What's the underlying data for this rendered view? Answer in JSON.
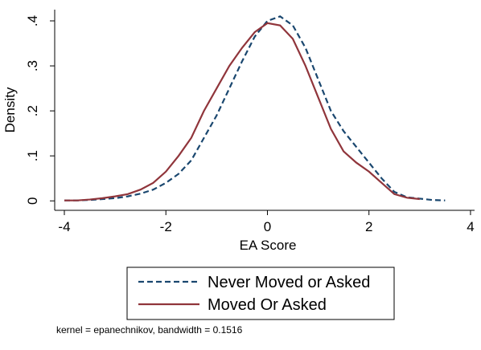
{
  "chart_data": {
    "type": "line",
    "x": [
      -4,
      -3.75,
      -3.5,
      -3.25,
      -3,
      -2.75,
      -2.5,
      -2.25,
      -2,
      -1.75,
      -1.5,
      -1.25,
      -1,
      -0.75,
      -0.5,
      -0.25,
      0,
      0.25,
      0.5,
      0.75,
      1,
      1.25,
      1.5,
      1.75,
      2,
      2.25,
      2.5,
      2.75,
      3,
      3.25,
      3.5
    ],
    "series": [
      {
        "name": "Never Moved or Asked",
        "color": "#1a476f",
        "style": "dash",
        "values": [
          0.001,
          0.001,
          0.002,
          0.004,
          0.006,
          0.01,
          0.016,
          0.025,
          0.04,
          0.06,
          0.09,
          0.14,
          0.19,
          0.25,
          0.31,
          0.365,
          0.4,
          0.41,
          0.39,
          0.34,
          0.27,
          0.2,
          0.155,
          0.12,
          0.085,
          0.05,
          0.02,
          0.008,
          0.005,
          0.002,
          0.001
        ]
      },
      {
        "name": "Moved Or Asked",
        "color": "#90353b",
        "style": "solid",
        "values": [
          0.001,
          0.001,
          0.003,
          0.006,
          0.01,
          0.015,
          0.025,
          0.04,
          0.065,
          0.1,
          0.14,
          0.2,
          0.25,
          0.3,
          0.34,
          0.375,
          0.395,
          0.39,
          0.36,
          0.3,
          0.23,
          0.16,
          0.11,
          0.085,
          0.065,
          0.04,
          0.015,
          0.007,
          0.004,
          null,
          null
        ]
      }
    ],
    "xlabel": "EA Score",
    "ylabel": "Density",
    "xlim": [
      -4.19,
      4.08
    ],
    "xticks": [
      -4,
      -2,
      0,
      2,
      4
    ],
    "ylim": [
      -0.021,
      0.425
    ],
    "yticks": [
      0,
      {
        "value": 0.1,
        "label": ".1"
      },
      {
        "value": 0.2,
        "label": ".2"
      },
      {
        "value": 0.3,
        "label": ".3"
      },
      {
        "value": 0.4,
        "label": ".4"
      }
    ],
    "note": "kernel = epanechnikov, bandwidth = 0.1516"
  }
}
